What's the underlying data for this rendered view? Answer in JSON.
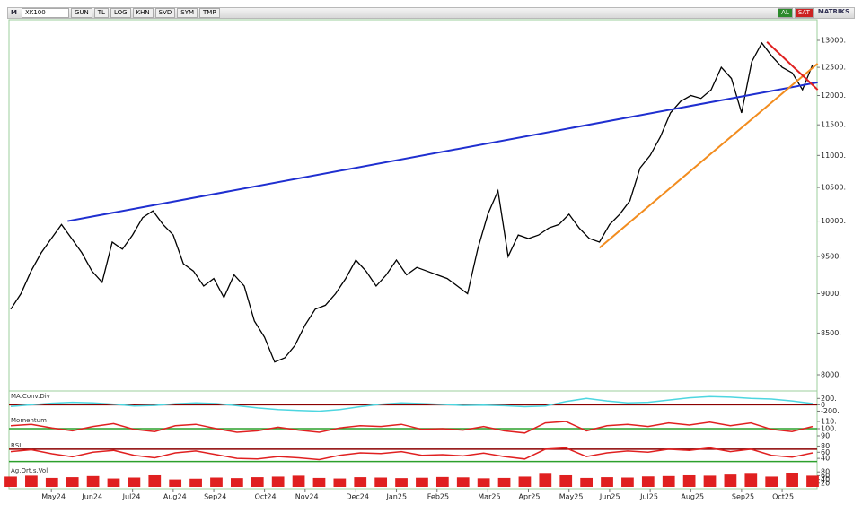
{
  "toolbar": {
    "logo": "M",
    "symbol": "XK100",
    "buttons": [
      "GUN",
      "TL",
      "LOG",
      "KHN",
      "SVD",
      "SYM",
      "TMP"
    ],
    "right": [
      "AL",
      "SAT",
      "MATRIKS"
    ]
  },
  "chart_data": [
    {
      "type": "line",
      "color": "#000000",
      "log_scale": true,
      "categories": [
        null,
        null,
        null,
        null,
        "May24",
        null,
        null,
        null,
        "Jun24",
        null,
        null,
        null,
        "Jul24",
        null,
        null,
        null,
        "Aug24",
        null,
        null,
        null,
        "Sep24",
        null,
        null,
        null,
        null,
        "Oct24",
        null,
        null,
        null,
        "Nov24",
        null,
        null,
        null,
        null,
        "Dec24",
        null,
        null,
        null,
        "Jan25",
        null,
        null,
        null,
        "Feb25",
        null,
        null,
        null,
        null,
        "Mar25",
        null,
        null,
        null,
        "Apr25",
        null,
        null,
        null,
        "May25",
        null,
        null,
        null,
        "Jun25",
        null,
        null,
        null,
        "Jul25",
        null,
        null,
        null,
        "Aug25",
        null,
        null,
        null,
        null,
        "Sep25",
        null,
        null,
        null,
        "Oct25",
        null,
        null,
        null
      ],
      "values": [
        8800,
        9000,
        9300,
        9550,
        9750,
        9950,
        9750,
        9550,
        9300,
        9150,
        9700,
        9600,
        9800,
        10050,
        10150,
        9950,
        9800,
        9400,
        9300,
        9100,
        9200,
        8950,
        9250,
        9100,
        8650,
        8450,
        8150,
        8200,
        8350,
        8600,
        8800,
        8850,
        9000,
        9200,
        9450,
        9300,
        9100,
        9250,
        9450,
        9250,
        9350,
        9300,
        9250,
        9200,
        9100,
        9000,
        9600,
        10100,
        10450,
        9500,
        9800,
        9750,
        9800,
        9900,
        9950,
        10100,
        9900,
        9750,
        9700,
        9950,
        10100,
        10300,
        10800,
        11000,
        11300,
        11700,
        11900,
        12000,
        11950,
        12100,
        12500,
        12300,
        11700,
        12600,
        12950,
        12700,
        12500,
        12400,
        12100,
        12550
      ],
      "ylim": [
        7825,
        13395
      ],
      "yticks": [
        {
          "value": 8000,
          "label": "8000."
        },
        {
          "value": 8500,
          "label": "8500."
        },
        {
          "value": 9000,
          "label": "9000."
        },
        {
          "value": 9500,
          "label": "9500."
        },
        {
          "value": 10000,
          "label": "10000."
        },
        {
          "value": 10500,
          "label": "10500."
        },
        {
          "value": 11000,
          "label": "11000."
        },
        {
          "value": 11500,
          "label": "11500."
        },
        {
          "value": 12000,
          "label": "12000."
        },
        {
          "value": 12500,
          "label": "12500."
        },
        {
          "value": 13000,
          "label": "13000."
        }
      ],
      "trendlines": [
        {
          "color": "#1f2fd0",
          "start": [
            5.6,
            10000
          ],
          "end": [
            79.5,
            12230
          ]
        },
        {
          "color": "#f28c1e",
          "start": [
            58,
            9620
          ],
          "end": [
            79.5,
            12570
          ]
        },
        {
          "color": "#e02020",
          "start": [
            74.5,
            12970
          ],
          "end": [
            79.5,
            12100
          ]
        }
      ]
    },
    {
      "type": "line",
      "title": "MA.Conv.Div",
      "color": "#4dd6e0",
      "values": [
        -50,
        0,
        50,
        80,
        60,
        20,
        -40,
        -20,
        30,
        60,
        40,
        -30,
        -100,
        -150,
        -180,
        -200,
        -150,
        -60,
        20,
        60,
        40,
        10,
        -20,
        -10,
        -30,
        -60,
        -40,
        100,
        200,
        120,
        60,
        80,
        150,
        220,
        260,
        240,
        200,
        180,
        120,
        40
      ],
      "ylim": [
        -300,
        350
      ],
      "yticks": [
        {
          "value": 200,
          "label": "200."
        },
        0,
        {
          "value": -200,
          "label": "-200."
        }
      ],
      "reflines": [
        {
          "value": 0,
          "color": "#8b0000"
        }
      ]
    },
    {
      "type": "line",
      "title": "Momentum",
      "color": "#e02020",
      "values": [
        104,
        106,
        101,
        97,
        103,
        107,
        99,
        96,
        104,
        106,
        100,
        95,
        97,
        102,
        98,
        95,
        101,
        104,
        103,
        106,
        99,
        100,
        98,
        103,
        97,
        94,
        108,
        110,
        97,
        104,
        106,
        103,
        108,
        105,
        109,
        104,
        108,
        99,
        96,
        103
      ],
      "ylim": [
        85,
        115
      ],
      "yticks": [
        {
          "value": 110,
          "label": "110."
        },
        {
          "value": 100,
          "label": "100."
        },
        {
          "value": 90,
          "label": "90."
        }
      ],
      "reflines": [
        {
          "value": 100,
          "color": "#2ca02c"
        }
      ]
    },
    {
      "type": "line",
      "title": "RSI",
      "color": "#e02020",
      "values": [
        62,
        68,
        55,
        45,
        60,
        66,
        50,
        42,
        58,
        64,
        52,
        40,
        38,
        46,
        42,
        36,
        50,
        58,
        56,
        62,
        50,
        52,
        48,
        57,
        46,
        38,
        70,
        74,
        46,
        58,
        64,
        60,
        70,
        66,
        74,
        62,
        70,
        50,
        44,
        58
      ],
      "ylim": [
        20,
        90
      ],
      "yticks": [
        {
          "value": 80,
          "label": "80."
        },
        {
          "value": 60,
          "label": "60."
        },
        {
          "value": 40,
          "label": "40."
        }
      ],
      "reflines": [
        {
          "value": 70,
          "color": "#8b0000"
        },
        {
          "value": 30,
          "color": "#2ca02c"
        }
      ]
    },
    {
      "type": "bar",
      "title": "Ag.Ort.s.Vol",
      "color": "#e02020",
      "values": [
        55,
        60,
        48,
        52,
        58,
        45,
        50,
        62,
        40,
        44,
        50,
        47,
        52,
        55,
        60,
        48,
        45,
        52,
        50,
        47,
        49,
        53,
        51,
        46,
        48,
        55,
        70,
        62,
        48,
        52,
        50,
        56,
        58,
        62,
        60,
        66,
        70,
        55,
        72,
        60
      ],
      "ylim": [
        0,
        100
      ],
      "yticks": [
        {
          "value": 80,
          "label": "80."
        },
        {
          "value": 60,
          "label": "60."
        },
        {
          "value": 40,
          "label": "40."
        },
        {
          "value": 20,
          "label": "20."
        }
      ]
    }
  ]
}
